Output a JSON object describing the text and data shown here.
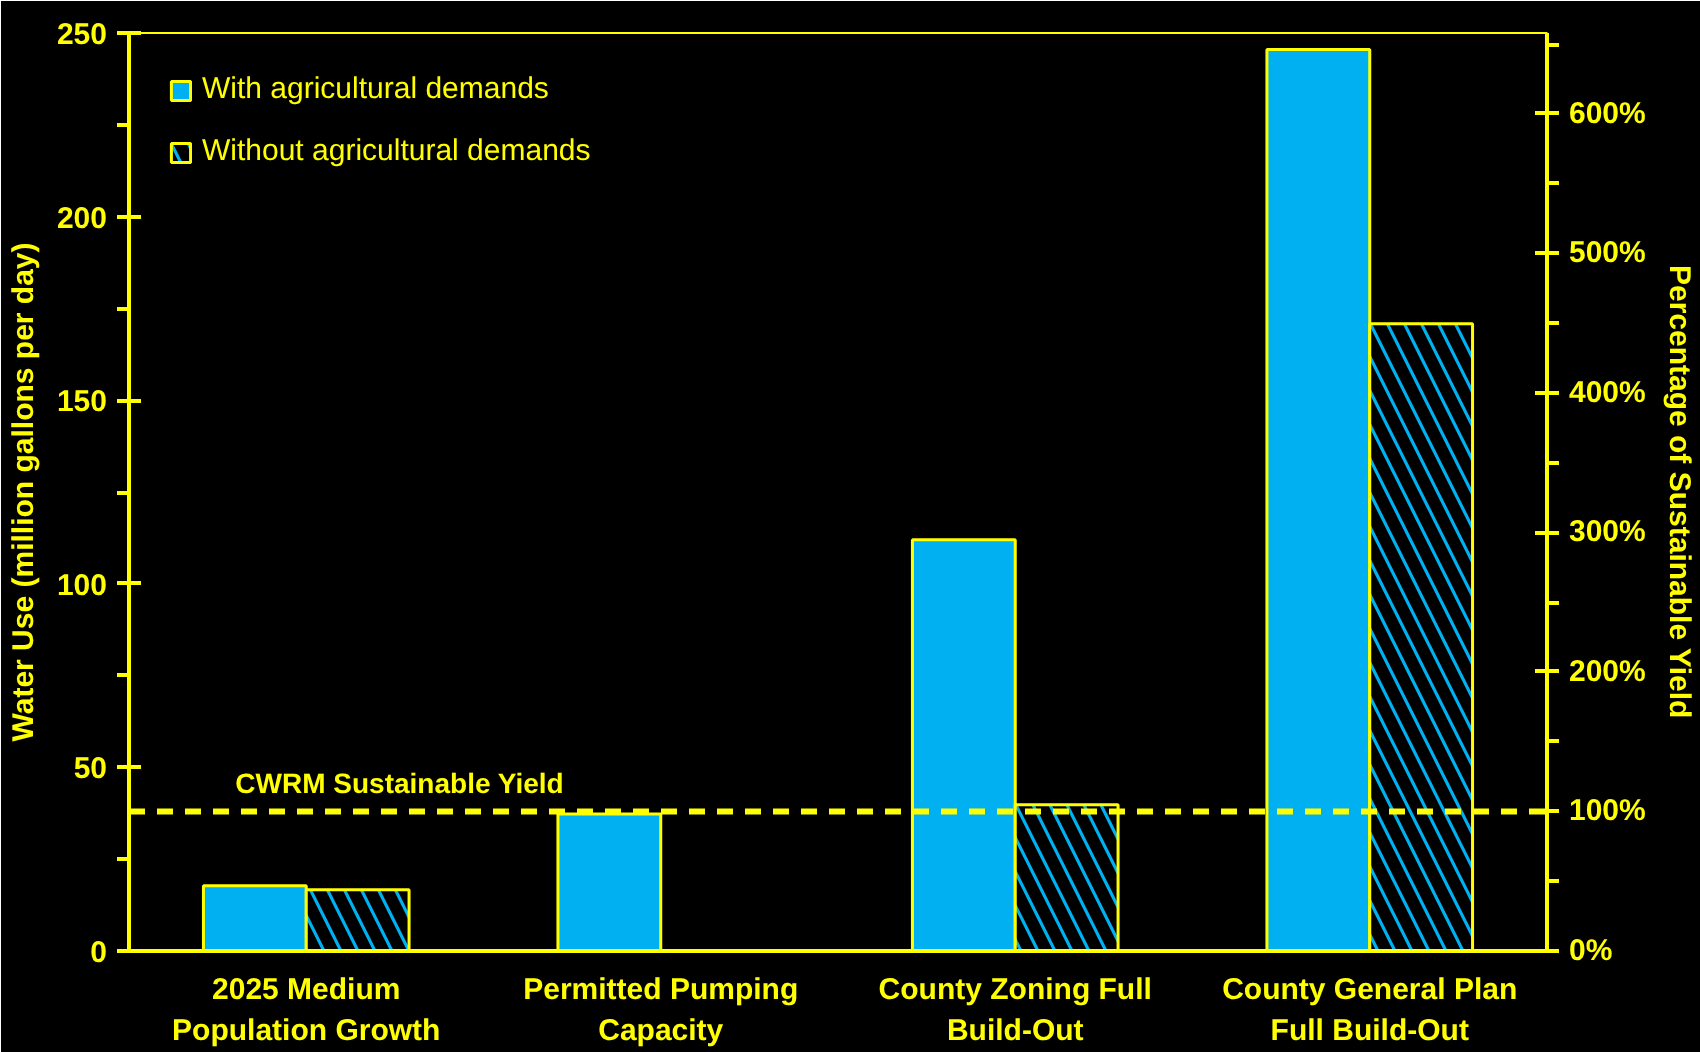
{
  "chart_data": {
    "type": "bar",
    "ylabel": "Water Use (million gallons per day)",
    "y2label": "Percentage of Sustainable Yield",
    "categories": [
      "2025 Medium Population Growth",
      "Permitted Pumping Capacity",
      "County Zoning Full Build-Out",
      "County General Plan Full Build-Out"
    ],
    "series": [
      {
        "name": "With agricultural demands",
        "color": "#00b0f0",
        "values": [
          17.8,
          37.3,
          112,
          245.5
        ]
      },
      {
        "name": "Without agricultural demands",
        "color": "#00b0f0",
        "values": [
          16.7,
          null,
          39.8,
          170.8
        ]
      }
    ],
    "ylim": [
      0,
      250
    ],
    "yticks": [
      0,
      {
        "value": 25,
        "label": null
      },
      50,
      {
        "value": 75,
        "label": null
      },
      100,
      {
        "value": 125,
        "label": null
      },
      150,
      {
        "value": 175,
        "label": null
      },
      200,
      {
        "value": 225,
        "label": null
      },
      250
    ],
    "y2lim": [
      0,
      658
    ],
    "y2ticks": [
      {
        "value": 0,
        "label": "0%"
      },
      {
        "value": 50,
        "label": null
      },
      {
        "value": 100,
        "label": "100%"
      },
      {
        "value": 150,
        "label": null
      },
      {
        "value": 200,
        "label": "200%"
      },
      {
        "value": 250,
        "label": null
      },
      {
        "value": 300,
        "label": "300%"
      },
      {
        "value": 350,
        "label": null
      },
      {
        "value": 400,
        "label": "400%"
      },
      {
        "value": 450,
        "label": null
      },
      {
        "value": 500,
        "label": "500%"
      },
      {
        "value": 550,
        "label": null
      },
      {
        "value": 600,
        "label": "600%"
      },
      {
        "value": 650,
        "label": null
      }
    ],
    "ref_lines": [
      {
        "axis": "y2",
        "value": 100,
        "label": "CWRM Sustainable Yield",
        "color": "#ffff00",
        "line_style": "dashed"
      }
    ],
    "legend": "top left",
    "grid": false
  }
}
